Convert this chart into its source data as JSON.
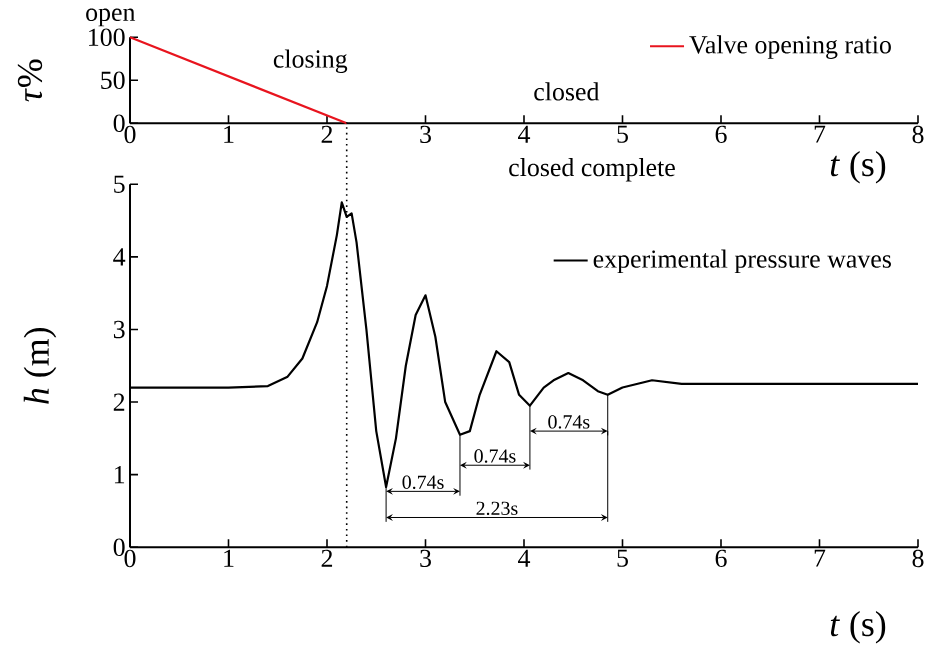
{
  "chart_data": [
    {
      "type": "line",
      "ylabel": "*τ*%",
      "xlabel": "*t* (s)",
      "xlim": [
        0,
        8
      ],
      "xticks": [
        0,
        1,
        2,
        3,
        4,
        5,
        6,
        7,
        8
      ],
      "ylim": [
        0,
        100
      ],
      "yticks": [
        0,
        50,
        100
      ],
      "legend": "top right",
      "line_style": "solid",
      "series": [
        {
          "name": "Valve opening ratio",
          "color": "#e8141e",
          "x": [
            0,
            2.2
          ],
          "values": [
            100,
            0
          ]
        }
      ],
      "annotations": [
        "open",
        "closing",
        "closed"
      ]
    },
    {
      "type": "line",
      "ylabel": "*h* (m)",
      "xlabel": "*t* (s)",
      "xlim": [
        0,
        8
      ],
      "xticks": [
        0,
        1,
        2,
        3,
        4,
        5,
        6,
        7,
        8
      ],
      "ylim": [
        0,
        5
      ],
      "yticks": [
        0,
        1,
        2,
        3,
        4,
        5
      ],
      "legend": "right",
      "line_style": "solid",
      "series": [
        {
          "name": "experimental pressure waves",
          "color": "#000000",
          "x": [
            0,
            0.5,
            1,
            1.4,
            1.6,
            1.75,
            1.9,
            2.0,
            2.1,
            2.15,
            2.2,
            2.25,
            2.3,
            2.4,
            2.5,
            2.6,
            2.7,
            2.8,
            2.9,
            3.0,
            3.1,
            3.2,
            3.35,
            3.45,
            3.55,
            3.72,
            3.85,
            3.95,
            4.06,
            4.2,
            4.3,
            4.45,
            4.6,
            4.75,
            4.85,
            5.0,
            5.3,
            5.6,
            6,
            7,
            8
          ],
          "values": [
            2.2,
            2.2,
            2.2,
            2.22,
            2.35,
            2.6,
            3.1,
            3.6,
            4.3,
            4.75,
            4.55,
            4.6,
            4.2,
            3.0,
            1.6,
            0.83,
            1.5,
            2.5,
            3.2,
            3.47,
            2.9,
            2.0,
            1.55,
            1.6,
            2.1,
            2.7,
            2.55,
            2.1,
            1.95,
            2.2,
            2.3,
            2.4,
            2.3,
            2.15,
            2.1,
            2.2,
            2.3,
            2.25,
            2.25,
            2.25,
            2.25
          ]
        }
      ],
      "ref_lines": [
        {
          "axis": "x",
          "value": 2.2,
          "line_style": "dotted"
        }
      ],
      "annotations": [
        "closed complete",
        {
          "text": "0.74s",
          "x": 3.35,
          "y": 1.55
        },
        {
          "text": "0.74s",
          "x": 4.06,
          "y": 1.95
        },
        {
          "text": "0.74s",
          "x": 4.85,
          "y": 2.1
        },
        {
          "text": "2.23s",
          "x": 2.6,
          "y": 0.83
        }
      ]
    }
  ]
}
